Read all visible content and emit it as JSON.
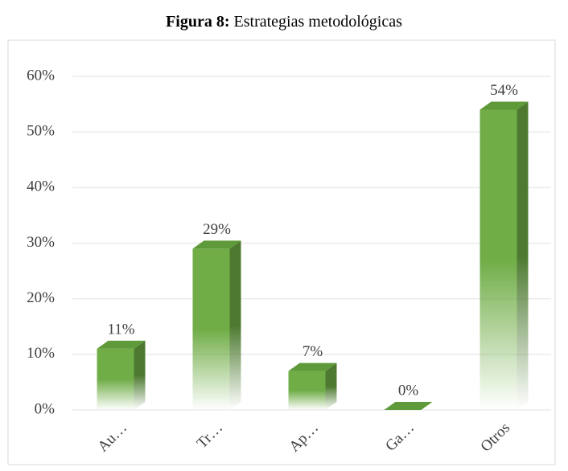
{
  "chart_data": {
    "type": "bar3d",
    "figure_label": "Figura 8:",
    "title": "Estrategias metodológicas",
    "categories": [
      "Au…",
      "Tr…",
      "Ap…",
      "Ga…",
      "Otros"
    ],
    "values": [
      11,
      29,
      7,
      0,
      54
    ],
    "value_labels": [
      "11%",
      "29%",
      "7%",
      "0%",
      "54%"
    ],
    "color": "#70ad47",
    "ylim": [
      0,
      60
    ],
    "yticks": [
      {
        "value": 0,
        "label": "0%"
      },
      {
        "value": 10,
        "label": "10%"
      },
      {
        "value": 20,
        "label": "20%"
      },
      {
        "value": 30,
        "label": "30%"
      },
      {
        "value": 40,
        "label": "40%"
      },
      {
        "value": 50,
        "label": "50%"
      },
      {
        "value": 60,
        "label": "60%"
      }
    ],
    "grid": true
  }
}
